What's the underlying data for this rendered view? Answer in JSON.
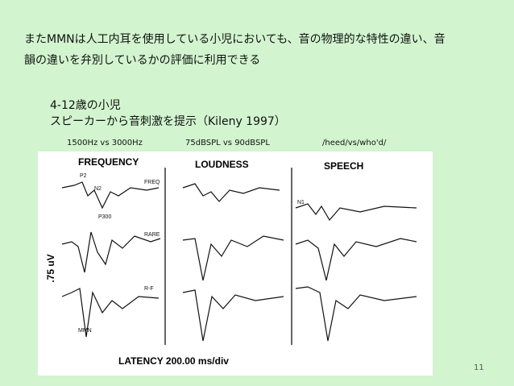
{
  "slide": {
    "body": [
      "またMMNは人工内耳を使用している小児においても、音の物理的な特性の違い、音",
      "韻の違いを弁別しているかの評価に利用できる"
    ],
    "bullets": [
      "4-12歳の小児",
      "スピーカーから音刺激を提示（Kileny 1997）"
    ],
    "captions": [
      "1500Hz vs 3000Hz",
      "75dBSPL vs 90dBSPL",
      "/heed/vs/who'd/"
    ],
    "page_number": "11"
  },
  "figure": {
    "panels": [
      "FREQUENCY",
      "LOUDNESS",
      "SPEECH"
    ],
    "y_label": ".75 uV",
    "x_label": "LATENCY 200.00 ms/div",
    "labels": [
      "P2",
      "N2",
      "P300",
      "FREQ",
      "RARE",
      "R-F",
      "MMN",
      "N1"
    ]
  }
}
